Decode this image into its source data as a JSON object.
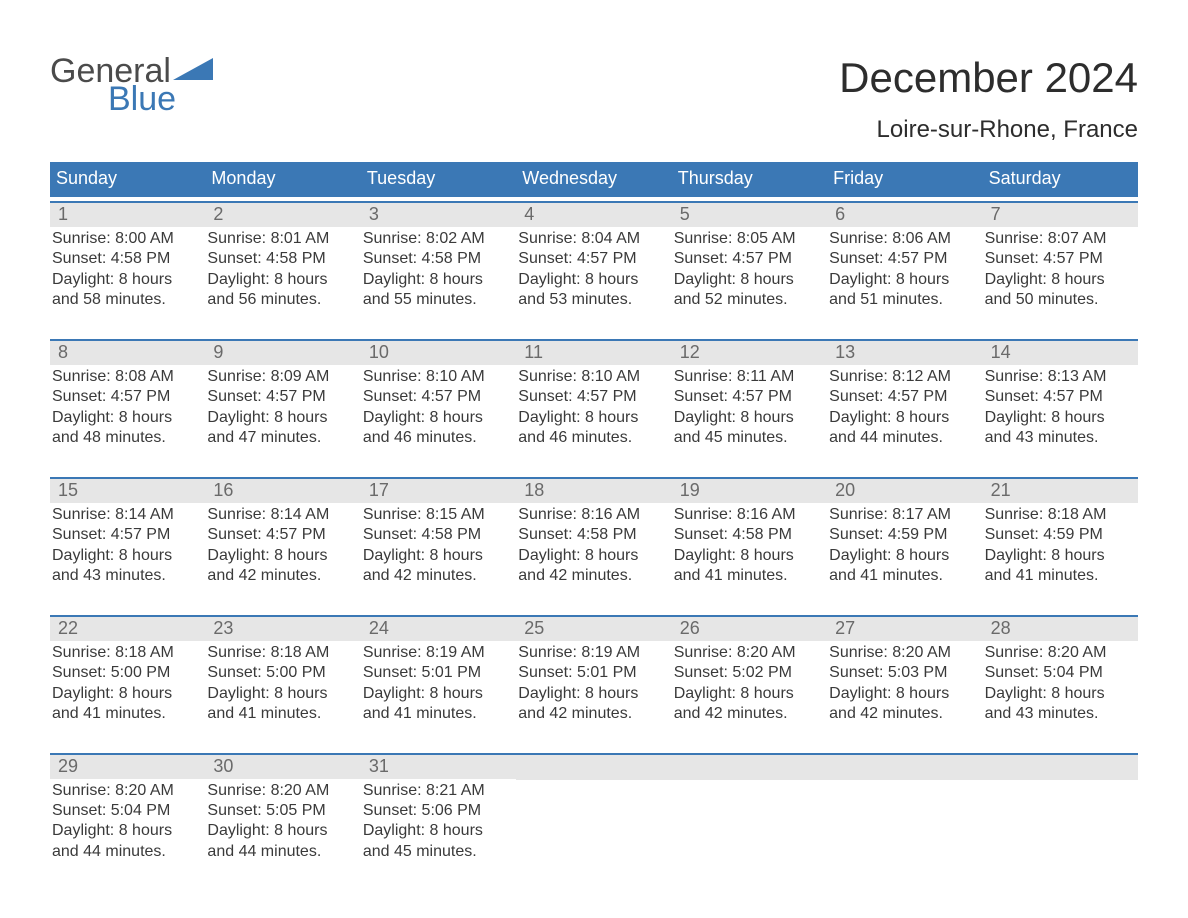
{
  "logo": {
    "word1": "General",
    "word2": "Blue"
  },
  "title": "December 2024",
  "subtitle": "Loire-sur-Rhone, France",
  "colors": {
    "header_blue": "#3b78b5",
    "day_band_bg": "#e6e6e6",
    "daynum_text": "#6a6a6a",
    "body_text": "#3a3a3a",
    "page_bg": "#ffffff"
  },
  "fonts": {
    "title_pt": 42,
    "subtitle_pt": 24,
    "dow_pt": 18,
    "daynum_pt": 18,
    "cell_pt": 16
  },
  "days_of_week": [
    "Sunday",
    "Monday",
    "Tuesday",
    "Wednesday",
    "Thursday",
    "Friday",
    "Saturday"
  ],
  "weeks": [
    [
      {
        "n": 1,
        "sunrise": "8:00 AM",
        "sunset": "4:58 PM",
        "daylight": "8 hours and 58 minutes."
      },
      {
        "n": 2,
        "sunrise": "8:01 AM",
        "sunset": "4:58 PM",
        "daylight": "8 hours and 56 minutes."
      },
      {
        "n": 3,
        "sunrise": "8:02 AM",
        "sunset": "4:58 PM",
        "daylight": "8 hours and 55 minutes."
      },
      {
        "n": 4,
        "sunrise": "8:04 AM",
        "sunset": "4:57 PM",
        "daylight": "8 hours and 53 minutes."
      },
      {
        "n": 5,
        "sunrise": "8:05 AM",
        "sunset": "4:57 PM",
        "daylight": "8 hours and 52 minutes."
      },
      {
        "n": 6,
        "sunrise": "8:06 AM",
        "sunset": "4:57 PM",
        "daylight": "8 hours and 51 minutes."
      },
      {
        "n": 7,
        "sunrise": "8:07 AM",
        "sunset": "4:57 PM",
        "daylight": "8 hours and 50 minutes."
      }
    ],
    [
      {
        "n": 8,
        "sunrise": "8:08 AM",
        "sunset": "4:57 PM",
        "daylight": "8 hours and 48 minutes."
      },
      {
        "n": 9,
        "sunrise": "8:09 AM",
        "sunset": "4:57 PM",
        "daylight": "8 hours and 47 minutes."
      },
      {
        "n": 10,
        "sunrise": "8:10 AM",
        "sunset": "4:57 PM",
        "daylight": "8 hours and 46 minutes."
      },
      {
        "n": 11,
        "sunrise": "8:10 AM",
        "sunset": "4:57 PM",
        "daylight": "8 hours and 46 minutes."
      },
      {
        "n": 12,
        "sunrise": "8:11 AM",
        "sunset": "4:57 PM",
        "daylight": "8 hours and 45 minutes."
      },
      {
        "n": 13,
        "sunrise": "8:12 AM",
        "sunset": "4:57 PM",
        "daylight": "8 hours and 44 minutes."
      },
      {
        "n": 14,
        "sunrise": "8:13 AM",
        "sunset": "4:57 PM",
        "daylight": "8 hours and 43 minutes."
      }
    ],
    [
      {
        "n": 15,
        "sunrise": "8:14 AM",
        "sunset": "4:57 PM",
        "daylight": "8 hours and 43 minutes."
      },
      {
        "n": 16,
        "sunrise": "8:14 AM",
        "sunset": "4:57 PM",
        "daylight": "8 hours and 42 minutes."
      },
      {
        "n": 17,
        "sunrise": "8:15 AM",
        "sunset": "4:58 PM",
        "daylight": "8 hours and 42 minutes."
      },
      {
        "n": 18,
        "sunrise": "8:16 AM",
        "sunset": "4:58 PM",
        "daylight": "8 hours and 42 minutes."
      },
      {
        "n": 19,
        "sunrise": "8:16 AM",
        "sunset": "4:58 PM",
        "daylight": "8 hours and 41 minutes."
      },
      {
        "n": 20,
        "sunrise": "8:17 AM",
        "sunset": "4:59 PM",
        "daylight": "8 hours and 41 minutes."
      },
      {
        "n": 21,
        "sunrise": "8:18 AM",
        "sunset": "4:59 PM",
        "daylight": "8 hours and 41 minutes."
      }
    ],
    [
      {
        "n": 22,
        "sunrise": "8:18 AM",
        "sunset": "5:00 PM",
        "daylight": "8 hours and 41 minutes."
      },
      {
        "n": 23,
        "sunrise": "8:18 AM",
        "sunset": "5:00 PM",
        "daylight": "8 hours and 41 minutes."
      },
      {
        "n": 24,
        "sunrise": "8:19 AM",
        "sunset": "5:01 PM",
        "daylight": "8 hours and 41 minutes."
      },
      {
        "n": 25,
        "sunrise": "8:19 AM",
        "sunset": "5:01 PM",
        "daylight": "8 hours and 42 minutes."
      },
      {
        "n": 26,
        "sunrise": "8:20 AM",
        "sunset": "5:02 PM",
        "daylight": "8 hours and 42 minutes."
      },
      {
        "n": 27,
        "sunrise": "8:20 AM",
        "sunset": "5:03 PM",
        "daylight": "8 hours and 42 minutes."
      },
      {
        "n": 28,
        "sunrise": "8:20 AM",
        "sunset": "5:04 PM",
        "daylight": "8 hours and 43 minutes."
      }
    ],
    [
      {
        "n": 29,
        "sunrise": "8:20 AM",
        "sunset": "5:04 PM",
        "daylight": "8 hours and 44 minutes."
      },
      {
        "n": 30,
        "sunrise": "8:20 AM",
        "sunset": "5:05 PM",
        "daylight": "8 hours and 44 minutes."
      },
      {
        "n": 31,
        "sunrise": "8:21 AM",
        "sunset": "5:06 PM",
        "daylight": "8 hours and 45 minutes."
      },
      null,
      null,
      null,
      null
    ]
  ],
  "cell_labels": {
    "sunrise_prefix": "Sunrise: ",
    "sunset_prefix": "Sunset: ",
    "daylight_prefix": "Daylight: "
  }
}
